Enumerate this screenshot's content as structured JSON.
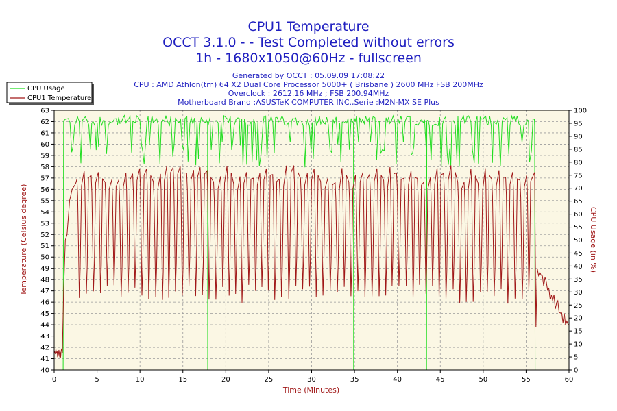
{
  "chart_data": {
    "type": "line",
    "title_lines": [
      "CPU1 Temperature",
      "OCCT 3.1.0 -  - Test Completed without errors",
      "1h - 1680x1050@60Hz - fullscreen"
    ],
    "info_lines": [
      "Generated by OCCT : 05.09.09 17:08:22",
      "CPU : AMD Athlon(tm) 64 X2 Dual Core Processor 5000+ ( Brisbane ) 2600 MHz FSB 200MHz",
      "Overclock : 2612.16 MHz ; FSB 200.94MHz",
      "Motherboard Brand :ASUSTeK COMPUTER INC.,Serie :M2N-MX SE Plus"
    ],
    "xlabel": "Time (Minutes)",
    "ylabel_left": "Temperature (Celsius degree)",
    "ylabel_right": "CPU Usage (in %)",
    "xlim": [
      0,
      60
    ],
    "ylim_left": [
      40,
      63
    ],
    "ylim_right": [
      0,
      100
    ],
    "x_ticks": [
      0,
      5,
      10,
      15,
      20,
      25,
      30,
      35,
      40,
      45,
      50,
      55,
      60
    ],
    "y_left_ticks": [
      40,
      41,
      42,
      43,
      44,
      45,
      46,
      47,
      48,
      49,
      50,
      51,
      52,
      53,
      54,
      55,
      56,
      57,
      58,
      59,
      60,
      61,
      62,
      63
    ],
    "y_right_ticks": [
      0,
      5,
      10,
      15,
      20,
      25,
      30,
      35,
      40,
      45,
      50,
      55,
      60,
      65,
      70,
      75,
      80,
      85,
      90,
      95,
      100
    ],
    "grid": true,
    "legend_position": "top-left",
    "colors": {
      "cpu_usage": "#22dd22",
      "temperature": "#a01818",
      "plot_bg": "#fbf7e4",
      "title": "#1f1fc0"
    },
    "series": [
      {
        "name": "CPU Usage",
        "axis": "right",
        "description_values": {
          "idle": 0,
          "load_min": 78,
          "load_max": 98,
          "load_start_min": 1.1,
          "load_end_min": 56.0,
          "dropouts_min": [
            17.9,
            34.9,
            43.4
          ]
        }
      },
      {
        "name": "CPU1 Temperature",
        "axis": "left",
        "description_values": {
          "idle_start": 41.5,
          "ramp_to": 56.5,
          "cycle_peak_range": [
            56.5,
            58.2
          ],
          "cycle_trough_range": [
            45.8,
            47.6
          ],
          "cycle_period_min": 0.8,
          "cycles_start_min": 2.5,
          "cycles_end_min": 56.0,
          "cooldown_start": 49,
          "final": 43.7
        }
      }
    ]
  }
}
